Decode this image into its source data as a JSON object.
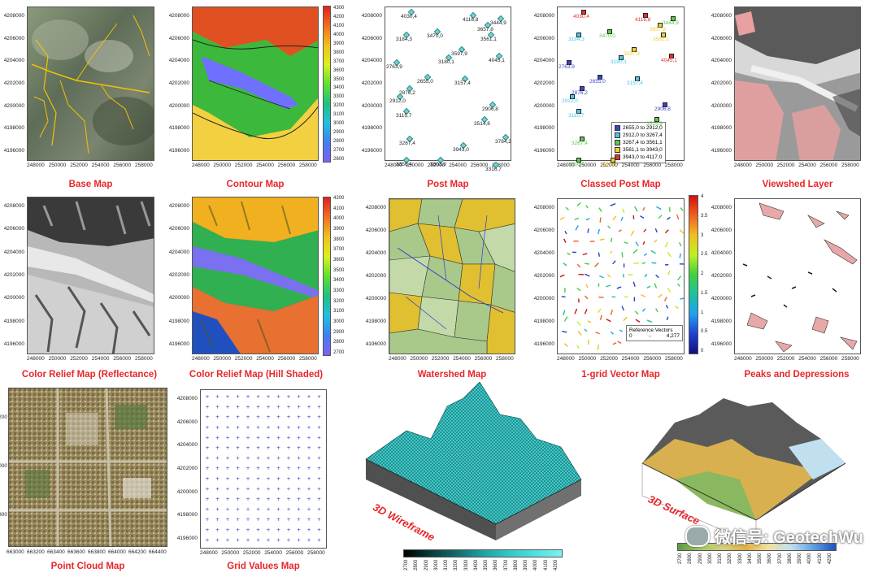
{
  "captions": {
    "base_map": "Base Map",
    "contour_map": "Contour Map",
    "post_map": "Post Map",
    "classed_post_map": "Classed Post Map",
    "viewshed_layer": "Viewshed Layer",
    "color_relief_reflectance": "Color Relief Map (Reflectance)",
    "color_relief_hill_shaded": "Color Relief Map (Hill Shaded)",
    "watershed_map": "Watershed Map",
    "vector_map": "1-grid Vector Map",
    "peaks_depressions": "Peaks and Depressions",
    "point_cloud_map": "Point Cloud Map",
    "grid_values_map": "Grid Values Map",
    "wireframe_3d": "3D Wireframe",
    "surface_3d": "3D Surface"
  },
  "axes": {
    "y_ticks": [
      "4208000",
      "4206000",
      "4204000",
      "4202000",
      "4200000",
      "4198000",
      "4196000"
    ],
    "x_ticks": [
      "248000",
      "250000",
      "252000",
      "254000",
      "256000",
      "258000"
    ],
    "pointcloud_x_ticks": [
      "663000",
      "663200",
      "663400",
      "663600",
      "663800",
      "664000",
      "664200",
      "664400"
    ],
    "pointcloud_y_ticks": [
      "200",
      "000",
      "800"
    ]
  },
  "colorbars": {
    "contour": [
      "4300",
      "4200",
      "4100",
      "4000",
      "3900",
      "3800",
      "3700",
      "3600",
      "3500",
      "3400",
      "3300",
      "3200",
      "3100",
      "3000",
      "2900",
      "2800",
      "2700",
      "2600"
    ],
    "hill_shaded": [
      "4200",
      "4100",
      "4000",
      "3900",
      "3800",
      "3700",
      "3600",
      "3500",
      "3400",
      "3300",
      "3200",
      "3100",
      "3000",
      "2900",
      "2800",
      "2700"
    ],
    "vector": [
      "4",
      "3.5",
      "3",
      "2.5",
      "2",
      "1.5",
      "1",
      "0.5",
      "0"
    ],
    "wireframe": [
      "2700",
      "2800",
      "2900",
      "3000",
      "3100",
      "3200",
      "3300",
      "3400",
      "3500",
      "3600",
      "3700",
      "3800",
      "3900",
      "4000",
      "4100",
      "4200"
    ],
    "surface": [
      "2700",
      "2800",
      "2900",
      "3000",
      "3100",
      "3200",
      "3300",
      "3400",
      "3500",
      "3600",
      "3700",
      "3800",
      "3900",
      "4000",
      "4100",
      "4200"
    ]
  },
  "post_labels": [
    "4030,4",
    "4116,8",
    "3444,9",
    "3657,8",
    "3184,3",
    "3470,0",
    "3561,1",
    "3597,9",
    "4045,1",
    "3180,1",
    "2763,9",
    "2655,0",
    "3157,4",
    "2876,2",
    "2912,0",
    "2906,8",
    "3115,7",
    "3514,8",
    "3267,4",
    "3784,2",
    "3943,0",
    "3356,4",
    "3803,0",
    "3316,7"
  ],
  "classed_legend": [
    {
      "range": "2655,0  to  2912,0",
      "color": "#3a46c8"
    },
    {
      "range": "2912,0  to  3267,4",
      "color": "#48c8e8"
    },
    {
      "range": "3267,4  to  3561,1",
      "color": "#5ac84a"
    },
    {
      "range": "3561,1  to  3943,0",
      "color": "#f0d030"
    },
    {
      "range": "3943,0  to  4117,0",
      "color": "#e03030"
    }
  ],
  "vector_legend": {
    "title": "Reference Vectors",
    "min": "0",
    "max": "4,277"
  },
  "watermark": "微信号: GeotechWu"
}
